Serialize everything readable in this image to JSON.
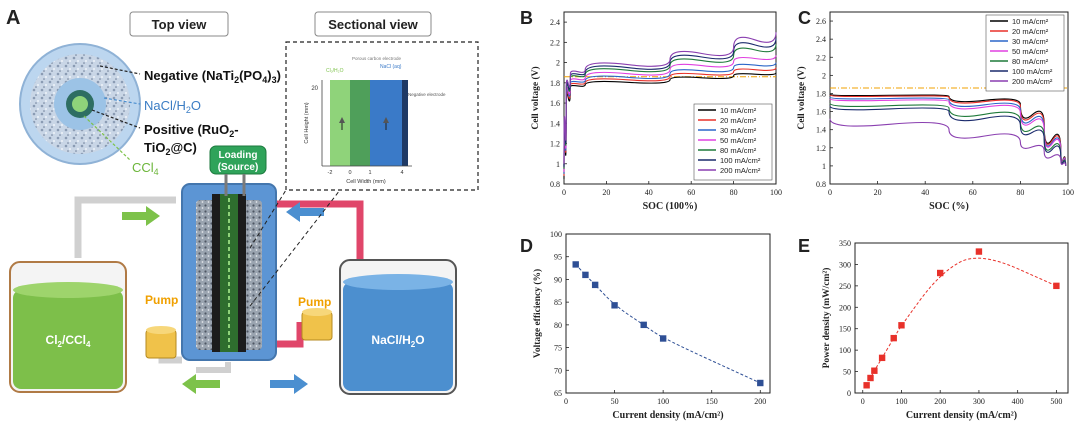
{
  "panel_a": {
    "letter": "A",
    "top_view_title": "Top view",
    "sectional_view_title": "Sectional view",
    "negative_label": "Negative (NaTi",
    "negative_sub1": "2",
    "negative_mid": "(PO",
    "negative_sub2": "4",
    "negative_end": ")",
    "negative_sub3": "3",
    "negative_close": ")",
    "nacl_label": "NaCl/H",
    "nacl_sub": "2",
    "nacl_end": "O",
    "positive_line1": "Positive (RuO",
    "positive_sub1": "2",
    "positive_line1_end": "-",
    "positive_line2": "TiO",
    "positive_sub2": "2",
    "positive_line2_end": "@C)",
    "ccl4_label": "CCl",
    "ccl4_sub": "4",
    "loading_line1": "Loading",
    "loading_line2": "(Source)",
    "pump_left": "Pump",
    "pump_right": "Pump",
    "tank_left": "Cl",
    "tank_left_sub1": "2",
    "tank_left_mid": "/CCl",
    "tank_left_sub2": "4",
    "tank_right": "NaCl/H",
    "tank_right_sub": "2",
    "tank_right_end": "O",
    "inset": {
      "y_label": "Cell Height (mm)",
      "x_label": "Cell Width (mm)",
      "y_tick": "20",
      "x_ticks": [
        "-2",
        "0",
        "1",
        "4"
      ],
      "zone1": "Cl₂/H₂O",
      "zone2": "Porous carbon electrode",
      "zone3": "NaCl (aq)",
      "zone4": "Negative electrode"
    }
  },
  "colors": {
    "green": "#7dc24a",
    "blue": "#4b8fd0",
    "pink": "#e0466a",
    "orange": "#f0a000",
    "navy": "#25477a"
  },
  "chart_data": [
    {
      "id": "B",
      "type": "line",
      "letter": "B",
      "title": "",
      "xlabel": "SOC (100%)",
      "ylabel": "Cell voltage (V)",
      "xlim": [
        0,
        100
      ],
      "ylim": [
        0.8,
        2.5
      ],
      "xticks": [
        0,
        20,
        40,
        60,
        80,
        100
      ],
      "yticks": [
        0.8,
        1.0,
        1.2,
        1.4,
        1.6,
        1.8,
        2.0,
        2.2,
        2.4
      ],
      "reference_line": 1.86,
      "legend_position": "bottom-right",
      "series": [
        {
          "name": "10 mA/cm²",
          "color": "#000000",
          "values": [
            [
              0,
              0.85
            ],
            [
              1,
              1.55
            ],
            [
              3,
              1.76
            ],
            [
              10,
              1.78
            ],
            [
              50,
              1.83
            ],
            [
              80,
              1.87
            ],
            [
              100,
              1.9
            ]
          ]
        },
        {
          "name": "20 mA/cm²",
          "color": "#e8312a",
          "values": [
            [
              0,
              0.88
            ],
            [
              1,
              1.58
            ],
            [
              3,
              1.78
            ],
            [
              10,
              1.8
            ],
            [
              50,
              1.86
            ],
            [
              80,
              1.91
            ],
            [
              100,
              1.95
            ]
          ]
        },
        {
          "name": "30 mA/cm²",
          "color": "#2b66c8",
          "values": [
            [
              0,
              0.9
            ],
            [
              1,
              1.6
            ],
            [
              3,
              1.8
            ],
            [
              10,
              1.82
            ],
            [
              50,
              1.89
            ],
            [
              80,
              1.95
            ],
            [
              100,
              2.0
            ]
          ]
        },
        {
          "name": "50 mA/cm²",
          "color": "#e040e0",
          "values": [
            [
              0,
              0.92
            ],
            [
              1,
              1.62
            ],
            [
              3,
              1.82
            ],
            [
              10,
              1.85
            ],
            [
              50,
              1.93
            ],
            [
              80,
              2.01
            ],
            [
              100,
              2.07
            ]
          ]
        },
        {
          "name": "80 mA/cm²",
          "color": "#1f7a3a",
          "values": [
            [
              0,
              0.95
            ],
            [
              1,
              1.65
            ],
            [
              3,
              1.85
            ],
            [
              10,
              1.88
            ],
            [
              50,
              1.97
            ],
            [
              80,
              2.07
            ],
            [
              100,
              2.18
            ]
          ]
        },
        {
          "name": "100 mA/cm²",
          "color": "#1a2a6c",
          "values": [
            [
              0,
              0.97
            ],
            [
              1,
              1.67
            ],
            [
              3,
              1.87
            ],
            [
              10,
              1.9
            ],
            [
              50,
              2.0
            ],
            [
              80,
              2.11
            ],
            [
              100,
              2.24
            ]
          ]
        },
        {
          "name": "200 mA/cm²",
          "color": "#8a3fb0",
          "values": [
            [
              0,
              1.0
            ],
            [
              1,
              1.7
            ],
            [
              3,
              1.89
            ],
            [
              10,
              1.93
            ],
            [
              50,
              2.03
            ],
            [
              80,
              2.15
            ],
            [
              100,
              2.3
            ]
          ]
        }
      ]
    },
    {
      "id": "C",
      "type": "line",
      "letter": "C",
      "title": "",
      "xlabel": "SOC (%)",
      "ylabel": "Cell voltage (V)",
      "xlim": [
        0,
        100
      ],
      "ylim": [
        0.8,
        2.7
      ],
      "xticks": [
        0,
        20,
        40,
        60,
        80,
        100
      ],
      "yticks": [
        0.8,
        1.0,
        1.2,
        1.4,
        1.6,
        1.8,
        2.0,
        2.2,
        2.4,
        2.6
      ],
      "reference_line": 1.86,
      "legend_position": "top-right",
      "series": [
        {
          "name": "10 mA/cm²",
          "color": "#000000",
          "values": [
            [
              0,
              1.79
            ],
            [
              50,
              1.77
            ],
            [
              80,
              1.68
            ],
            [
              90,
              1.45
            ],
            [
              97,
              1.15
            ],
            [
              99,
              1.0
            ]
          ]
        },
        {
          "name": "20 mA/cm²",
          "color": "#e8312a",
          "values": [
            [
              0,
              1.78
            ],
            [
              50,
              1.76
            ],
            [
              80,
              1.66
            ],
            [
              90,
              1.43
            ],
            [
              97,
              1.14
            ],
            [
              99,
              1.0
            ]
          ]
        },
        {
          "name": "30 mA/cm²",
          "color": "#2b66c8",
          "values": [
            [
              0,
              1.76
            ],
            [
              50,
              1.73
            ],
            [
              80,
              1.62
            ],
            [
              90,
              1.4
            ],
            [
              97,
              1.13
            ],
            [
              99,
              1.0
            ]
          ]
        },
        {
          "name": "50 mA/cm²",
          "color": "#e040e0",
          "values": [
            [
              0,
              1.74
            ],
            [
              50,
              1.71
            ],
            [
              80,
              1.59
            ],
            [
              90,
              1.38
            ],
            [
              97,
              1.12
            ],
            [
              99,
              1.0
            ]
          ]
        },
        {
          "name": "80 mA/cm²",
          "color": "#1f7a3a",
          "values": [
            [
              0,
              1.69
            ],
            [
              50,
              1.64
            ],
            [
              80,
              1.5
            ],
            [
              90,
              1.32
            ],
            [
              97,
              1.1
            ],
            [
              99,
              1.0
            ]
          ]
        },
        {
          "name": "100 mA/cm²",
          "color": "#1a2a6c",
          "values": [
            [
              0,
              1.66
            ],
            [
              50,
              1.6
            ],
            [
              80,
              1.45
            ],
            [
              90,
              1.29
            ],
            [
              97,
              1.08
            ],
            [
              99,
              1.0
            ]
          ]
        },
        {
          "name": "200 mA/cm²",
          "color": "#8a3fb0",
          "values": [
            [
              0,
              1.52
            ],
            [
              50,
              1.4
            ],
            [
              80,
              1.26
            ],
            [
              90,
              1.16
            ],
            [
              97,
              1.05
            ],
            [
              99,
              1.0
            ]
          ]
        }
      ]
    },
    {
      "id": "D",
      "type": "scatter",
      "letter": "D",
      "title": "",
      "xlabel": "Current density (mA/cm²)",
      "ylabel": "Voltage efficiency (%)",
      "xlim": [
        0,
        210
      ],
      "ylim": [
        65,
        100
      ],
      "xticks": [
        0,
        50,
        100,
        150,
        200
      ],
      "yticks": [
        65,
        70,
        75,
        80,
        85,
        90,
        95,
        100
      ],
      "marker_color": "#2e4f95",
      "x": [
        10,
        20,
        30,
        50,
        80,
        100,
        200
      ],
      "y": [
        93.3,
        91.0,
        88.8,
        84.3,
        80.0,
        77.0,
        67.2
      ]
    },
    {
      "id": "E",
      "type": "scatter",
      "letter": "E",
      "title": "",
      "xlabel": "Current density (mA/cm²)",
      "ylabel": "Power density (mW/cm²)",
      "xlim": [
        -20,
        530
      ],
      "ylim": [
        0,
        350
      ],
      "xticks": [
        0,
        100,
        200,
        300,
        400,
        500
      ],
      "yticks": [
        0,
        50,
        100,
        150,
        200,
        250,
        300,
        350
      ],
      "marker_color": "#e8312a",
      "x": [
        10,
        20,
        30,
        50,
        80,
        100,
        200,
        300,
        500
      ],
      "y": [
        18,
        35,
        52,
        82,
        128,
        158,
        280,
        330,
        250
      ]
    }
  ]
}
